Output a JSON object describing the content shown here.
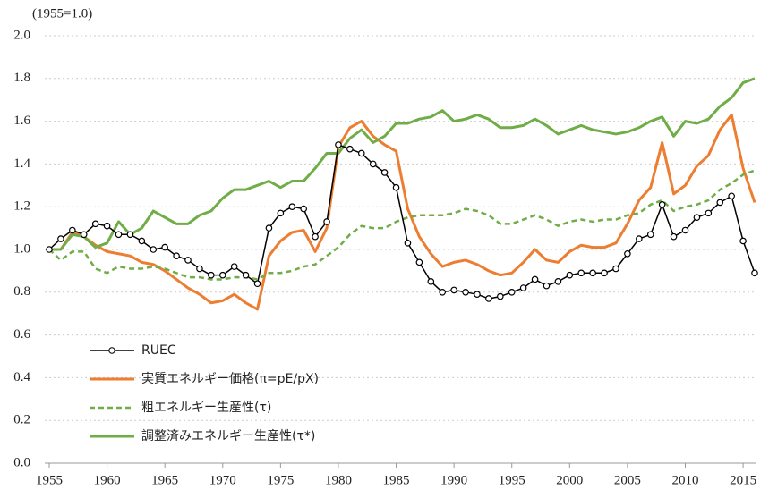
{
  "chart_data": {
    "type": "line",
    "y_label": "(1955=1.0)",
    "x": [
      1955,
      1956,
      1957,
      1958,
      1959,
      1960,
      1961,
      1962,
      1963,
      1964,
      1965,
      1966,
      1967,
      1968,
      1969,
      1970,
      1971,
      1972,
      1973,
      1974,
      1975,
      1976,
      1977,
      1978,
      1979,
      1980,
      1981,
      1982,
      1983,
      1984,
      1985,
      1986,
      1987,
      1988,
      1989,
      1990,
      1991,
      1992,
      1993,
      1994,
      1995,
      1996,
      1997,
      1998,
      1999,
      2000,
      2001,
      2002,
      2003,
      2004,
      2005,
      2006,
      2007,
      2008,
      2009,
      2010,
      2011,
      2012,
      2013,
      2014,
      2015,
      2016
    ],
    "xlim": [
      1955,
      2016
    ],
    "xticks": [
      1955,
      1960,
      1965,
      1970,
      1975,
      1980,
      1985,
      1990,
      1995,
      2000,
      2005,
      2010,
      2015
    ],
    "ylim": [
      0,
      2
    ],
    "yticks": [
      {
        "value": 0,
        "label": "0.0"
      },
      0.2,
      0.4,
      0.6,
      0.8,
      {
        "value": 1,
        "label": "1.0"
      },
      1.2,
      1.4,
      1.6,
      1.8,
      {
        "value": 2,
        "label": "2.0"
      }
    ],
    "grid": true,
    "legend": "lower-left",
    "series": [
      {
        "name": "RUEC",
        "color": "#000000",
        "marker": "circle",
        "dashed": false,
        "values": [
          1.0,
          1.05,
          1.09,
          1.07,
          1.12,
          1.11,
          1.07,
          1.07,
          1.04,
          1.0,
          1.01,
          0.97,
          0.95,
          0.91,
          0.88,
          0.88,
          0.92,
          0.88,
          0.84,
          1.1,
          1.17,
          1.2,
          1.19,
          1.06,
          1.13,
          1.49,
          1.47,
          1.45,
          1.4,
          1.36,
          1.29,
          1.03,
          0.94,
          0.85,
          0.8,
          0.81,
          0.8,
          0.79,
          0.77,
          0.78,
          0.8,
          0.82,
          0.86,
          0.83,
          0.85,
          0.88,
          0.89,
          0.89,
          0.89,
          0.91,
          0.98,
          1.05,
          1.07,
          1.21,
          1.06,
          1.09,
          1.15,
          1.17,
          1.22,
          1.25,
          1.04,
          0.89
        ]
      },
      {
        "name": "実質エネルギー価格(π=pE/pX)",
        "color": "#ed7d31",
        "marker": "none",
        "dashed": false,
        "values": [
          1.0,
          1.0,
          1.08,
          1.06,
          1.02,
          0.99,
          0.98,
          0.97,
          0.94,
          0.93,
          0.9,
          0.86,
          0.82,
          0.79,
          0.75,
          0.76,
          0.79,
          0.75,
          0.72,
          0.97,
          1.04,
          1.08,
          1.09,
          0.99,
          1.1,
          1.48,
          1.57,
          1.6,
          1.53,
          1.49,
          1.46,
          1.19,
          1.06,
          0.98,
          0.92,
          0.94,
          0.95,
          0.93,
          0.9,
          0.88,
          0.89,
          0.94,
          1.0,
          0.95,
          0.94,
          0.99,
          1.02,
          1.01,
          1.01,
          1.03,
          1.12,
          1.23,
          1.29,
          1.5,
          1.26,
          1.3,
          1.39,
          1.44,
          1.56,
          1.63,
          1.38,
          1.22
        ]
      },
      {
        "name": "粗エネルギー生産性(τ)",
        "color": "#70ad47",
        "marker": "none",
        "dashed": true,
        "values": [
          1.0,
          0.95,
          0.99,
          0.99,
          0.91,
          0.89,
          0.92,
          0.91,
          0.91,
          0.92,
          0.91,
          0.89,
          0.87,
          0.87,
          0.86,
          0.86,
          0.87,
          0.87,
          0.86,
          0.89,
          0.89,
          0.9,
          0.92,
          0.93,
          0.97,
          1.01,
          1.07,
          1.11,
          1.1,
          1.1,
          1.13,
          1.15,
          1.16,
          1.16,
          1.16,
          1.17,
          1.19,
          1.18,
          1.16,
          1.12,
          1.12,
          1.14,
          1.16,
          1.14,
          1.11,
          1.13,
          1.14,
          1.13,
          1.14,
          1.14,
          1.16,
          1.17,
          1.21,
          1.23,
          1.18,
          1.2,
          1.21,
          1.23,
          1.28,
          1.31,
          1.35,
          1.37
        ]
      },
      {
        "name": "調整済みエネルギー生産性(τ*)",
        "color": "#70ad47",
        "marker": "none",
        "dashed": false,
        "values": [
          1.0,
          1.0,
          1.07,
          1.06,
          1.01,
          1.03,
          1.13,
          1.07,
          1.1,
          1.18,
          1.15,
          1.12,
          1.12,
          1.16,
          1.18,
          1.24,
          1.28,
          1.28,
          1.3,
          1.32,
          1.29,
          1.32,
          1.32,
          1.38,
          1.45,
          1.45,
          1.52,
          1.56,
          1.5,
          1.53,
          1.59,
          1.59,
          1.61,
          1.62,
          1.65,
          1.6,
          1.61,
          1.63,
          1.61,
          1.57,
          1.57,
          1.58,
          1.61,
          1.58,
          1.54,
          1.56,
          1.58,
          1.56,
          1.55,
          1.54,
          1.55,
          1.57,
          1.6,
          1.62,
          1.53,
          1.6,
          1.59,
          1.61,
          1.67,
          1.71,
          1.78,
          1.8
        ]
      }
    ]
  }
}
